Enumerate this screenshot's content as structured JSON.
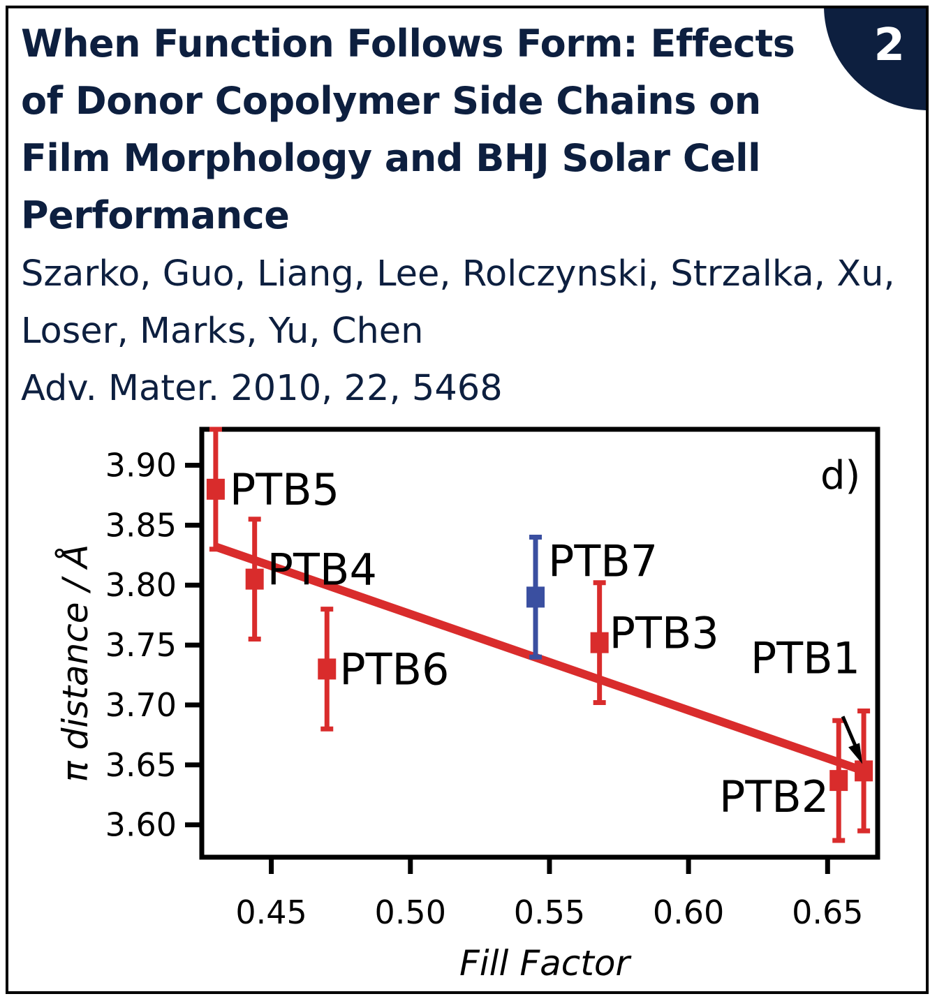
{
  "card": {
    "badge_number": "2",
    "title": "When Function Follows Form: Effects of Donor Copolymer Side Chains on Film Morphology and BHJ Solar Cell Performance",
    "authors": "Szarko, Guo, Liang, Lee, Rolczynski, Strzalka, Xu, Loser, Marks, Yu, Chen",
    "journal": "Adv. Mater. 2010, 22, 5468"
  },
  "colors": {
    "navy": "#0d1f3f",
    "red_series": "#d92c2c",
    "blue_point": "#3a4fa0"
  },
  "chart_data": {
    "type": "scatter",
    "panel_label": "d)",
    "xlabel": "Fill Factor",
    "ylabel": "π distance / Å",
    "xlim": [
      0.425,
      0.668
    ],
    "ylim": [
      3.573,
      3.93
    ],
    "xticks": [
      "0.45",
      "0.50",
      "0.55",
      "0.60",
      "0.65"
    ],
    "yticks": [
      "3.60",
      "3.65",
      "3.70",
      "3.75",
      "3.80",
      "3.85",
      "3.90"
    ],
    "points": [
      {
        "label": "PTB5",
        "x": 0.43,
        "y": 3.88,
        "err": 0.05,
        "color": "red"
      },
      {
        "label": "PTB4",
        "x": 0.444,
        "y": 3.805,
        "err": 0.05,
        "color": "red"
      },
      {
        "label": "PTB6",
        "x": 0.47,
        "y": 3.73,
        "err": 0.05,
        "color": "red"
      },
      {
        "label": "PTB7",
        "x": 0.545,
        "y": 3.79,
        "err": 0.05,
        "color": "blue"
      },
      {
        "label": "PTB3",
        "x": 0.568,
        "y": 3.752,
        "err": 0.05,
        "color": "red"
      },
      {
        "label": "PTB2",
        "x": 0.654,
        "y": 3.637,
        "err": 0.05,
        "color": "red"
      },
      {
        "label": "PTB1",
        "x": 0.663,
        "y": 3.645,
        "err": 0.05,
        "color": "red"
      }
    ],
    "fit_line": {
      "x": [
        0.43,
        0.663
      ],
      "y": [
        3.832,
        3.645
      ]
    },
    "grid": false,
    "legend": "none"
  }
}
